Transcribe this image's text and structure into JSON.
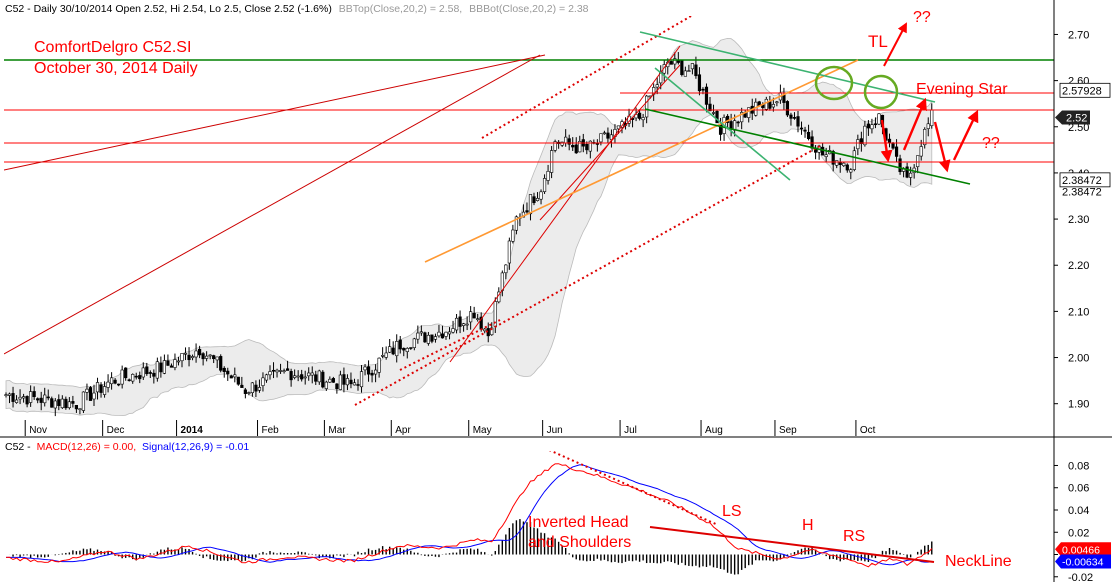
{
  "header": {
    "price": "C52 - Daily 30/10/2014 Open 2.52, Hi 2.54, Lo 2.5, Close 2.52 (-1.6%)",
    "bbtop": "BBTop(Close,20,2) = 2.58,",
    "bbbot": "BBBot(Close,20,2) = 2.38",
    "macd_ticker": "C52 -",
    "macd_label": "MACD(12,26) = 0.00,",
    "signal_label": "Signal(12,26,9) = -0.01"
  },
  "annotations": {
    "title_line1": "ComfortDelgro C52.SI",
    "title_line2": "October 30, 2014 Daily",
    "tl": "TL",
    "qq_top": "??",
    "qq_right": "??",
    "evening_star": "Evening Star",
    "ls": "LS",
    "h": "H",
    "rs": "RS",
    "ihs_line1": "Inverted Head",
    "ihs_line2": "and Shoulders",
    "neckline": "NeckLine"
  },
  "colors": {
    "up_candle": "#000000",
    "bollinger_fill": "#ececec",
    "macd_line": "#ff0000",
    "signal_line": "#0000ff",
    "annotation": "#ff0000",
    "support_green": "#008000",
    "trend_orange": "#ff9933",
    "channel_teal": "#3cb371"
  },
  "chart_data": [
    {
      "type": "candlestick",
      "ylim": [
        1.83,
        2.74
      ],
      "y_ticks": [
        "2.70",
        "2.60",
        "2.50",
        "2.40",
        "2.30",
        "2.20",
        "2.10",
        "2.00",
        "1.90"
      ],
      "y_tick_values": [
        2.7,
        2.6,
        2.5,
        2.4,
        2.3,
        2.2,
        2.1,
        2.0,
        1.9
      ],
      "x_labels": [
        "Nov",
        "Dec",
        "2014",
        "Feb",
        "Mar",
        "Apr",
        "May",
        "Jun",
        "Jul",
        "Aug",
        "Sep",
        "Oct"
      ],
      "x_label_days": [
        10,
        32,
        53,
        76,
        95,
        114,
        136,
        157,
        179,
        202,
        223,
        246
      ],
      "price_tags": [
        {
          "label": "2.57928",
          "value": 2.579,
          "style": "box"
        },
        {
          "label": "2.52",
          "value": 2.52,
          "style": "dark"
        },
        {
          "label": "2.38472",
          "value": 2.385,
          "style": "box"
        },
        {
          "label": "2.38472",
          "value": 2.36,
          "style": "plain"
        }
      ],
      "anchors": [
        {
          "day": 0,
          "p": 1.92
        },
        {
          "day": 20,
          "p": 1.9
        },
        {
          "day": 30,
          "p": 1.95
        },
        {
          "day": 45,
          "p": 1.98
        },
        {
          "day": 55,
          "p": 2.02
        },
        {
          "day": 68,
          "p": 1.93
        },
        {
          "day": 80,
          "p": 1.97
        },
        {
          "day": 98,
          "p": 1.94
        },
        {
          "day": 112,
          "p": 2.03
        },
        {
          "day": 125,
          "p": 2.06
        },
        {
          "day": 133,
          "p": 2.1
        },
        {
          "day": 137,
          "p": 2.05
        },
        {
          "day": 145,
          "p": 2.3
        },
        {
          "day": 152,
          "p": 2.37
        },
        {
          "day": 156,
          "p": 2.47
        },
        {
          "day": 165,
          "p": 2.45
        },
        {
          "day": 180,
          "p": 2.52
        },
        {
          "day": 188,
          "p": 2.64
        },
        {
          "day": 195,
          "p": 2.62
        },
        {
          "day": 203,
          "p": 2.5
        },
        {
          "day": 210,
          "p": 2.53
        },
        {
          "day": 220,
          "p": 2.56
        },
        {
          "day": 232,
          "p": 2.44
        },
        {
          "day": 240,
          "p": 2.42
        },
        {
          "day": 244,
          "p": 2.5
        },
        {
          "day": 248,
          "p": 2.52
        },
        {
          "day": 253,
          "p": 2.42
        },
        {
          "day": 256,
          "p": 2.38
        },
        {
          "day": 260,
          "p": 2.47
        },
        {
          "day": 263,
          "p": 2.52
        }
      ]
    },
    {
      "type": "line",
      "title": "MACD(12,26) / Signal(12,26,9)",
      "ylim": [
        -0.022,
        0.093
      ],
      "y_ticks": [
        "0.08",
        "0.06",
        "0.04",
        "0.02",
        "0.00",
        "-0.02"
      ],
      "y_tick_values": [
        0.08,
        0.06,
        0.04,
        0.02,
        0.0,
        -0.02
      ],
      "price_tags": [
        {
          "label": "0.00466",
          "value": 0.0047,
          "color": "#ff0000"
        },
        {
          "label": "-0.00634",
          "value": -0.0063,
          "color": "#0000ff"
        }
      ],
      "macd_anchors": [
        {
          "day": 0,
          "v": -0.003
        },
        {
          "day": 15,
          "v": -0.007
        },
        {
          "day": 28,
          "v": 0.003
        },
        {
          "day": 38,
          "v": -0.004
        },
        {
          "day": 52,
          "v": 0.008
        },
        {
          "day": 68,
          "v": -0.007
        },
        {
          "day": 80,
          "v": -0.002
        },
        {
          "day": 98,
          "v": -0.006
        },
        {
          "day": 112,
          "v": 0.008
        },
        {
          "day": 124,
          "v": 0.006
        },
        {
          "day": 133,
          "v": 0.013
        },
        {
          "day": 138,
          "v": 0.012
        },
        {
          "day": 148,
          "v": 0.062
        },
        {
          "day": 156,
          "v": 0.082
        },
        {
          "day": 166,
          "v": 0.073
        },
        {
          "day": 180,
          "v": 0.058
        },
        {
          "day": 190,
          "v": 0.045
        },
        {
          "day": 200,
          "v": 0.028
        },
        {
          "day": 208,
          "v": 0.005
        },
        {
          "day": 220,
          "v": -0.004
        },
        {
          "day": 228,
          "v": 0.004
        },
        {
          "day": 238,
          "v": -0.003
        },
        {
          "day": 245,
          "v": -0.01
        },
        {
          "day": 252,
          "v": -0.004
        },
        {
          "day": 256,
          "v": -0.009
        },
        {
          "day": 263,
          "v": 0.005
        }
      ],
      "signal_lag_days": 4
    }
  ]
}
